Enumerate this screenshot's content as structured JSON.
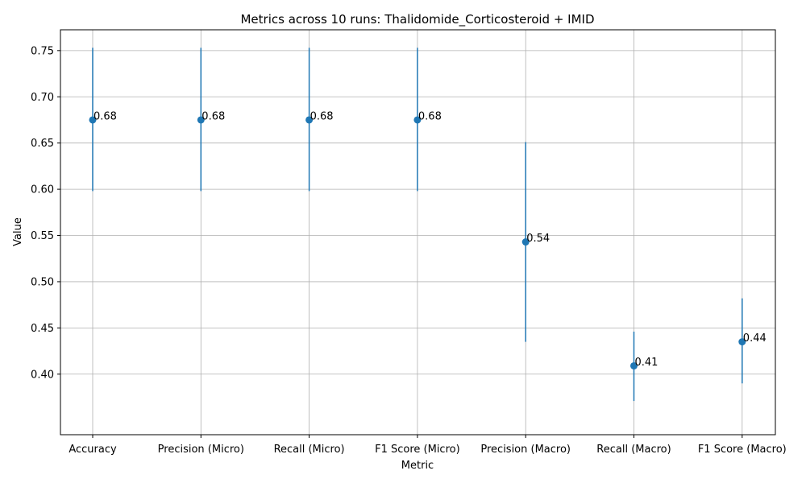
{
  "chart_data": {
    "type": "scatter",
    "title": "Metrics across 10 runs: Thalidomide_Corticosteroid + IMID",
    "xlabel": "Metric",
    "ylabel": "Value",
    "categories": [
      "Accuracy",
      "Precision (Micro)",
      "Recall (Micro)",
      "F1 Score (Micro)",
      "Precision (Macro)",
      "Recall (Macro)",
      "F1 Score (Macro)"
    ],
    "values": [
      0.675,
      0.675,
      0.675,
      0.675,
      0.543,
      0.409,
      0.435
    ],
    "error_low": [
      0.598,
      0.598,
      0.598,
      0.598,
      0.435,
      0.371,
      0.39
    ],
    "error_high": [
      0.753,
      0.753,
      0.753,
      0.753,
      0.651,
      0.446,
      0.482
    ],
    "data_labels": [
      "0.68",
      "0.68",
      "0.68",
      "0.68",
      "0.54",
      "0.41",
      "0.44"
    ],
    "ylim": [
      0.3345,
      0.7725
    ],
    "yticks": [
      0.4,
      0.45,
      0.5,
      0.55,
      0.6,
      0.65,
      0.7,
      0.75
    ],
    "ytick_labels": [
      "0.40",
      "0.45",
      "0.50",
      "0.55",
      "0.60",
      "0.65",
      "0.70",
      "0.75"
    ],
    "grid": true,
    "color": "#1f77b4"
  }
}
